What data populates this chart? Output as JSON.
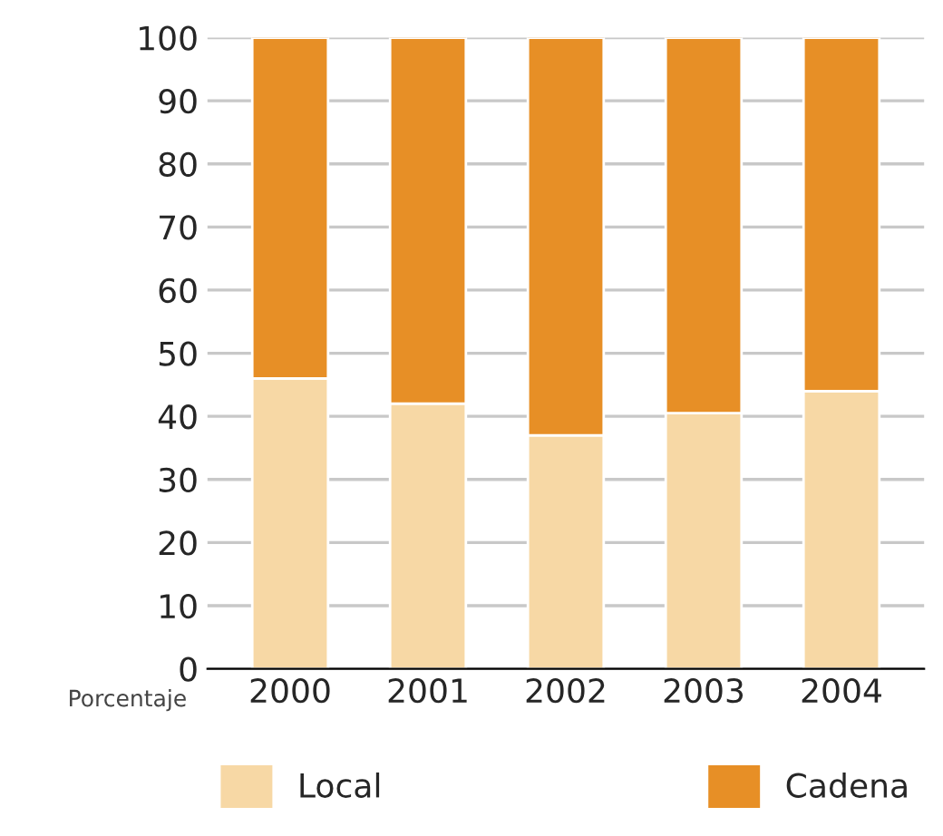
{
  "chart_data": {
    "type": "bar",
    "stacked": true,
    "ylabel": "Porcentaje",
    "categories": [
      "2000",
      "2001",
      "2002",
      "2003",
      "2004"
    ],
    "series": [
      {
        "name": "Local",
        "color": "#f7d8a5",
        "values": [
          46,
          42,
          37,
          40.5,
          44
        ]
      },
      {
        "name": "Cadena",
        "color": "#e78f26",
        "values": [
          54,
          58,
          63,
          59.5,
          56
        ]
      }
    ],
    "ylim": [
      0,
      100
    ],
    "yticks": [
      0,
      10,
      20,
      30,
      40,
      50,
      60,
      70,
      80,
      90,
      100
    ],
    "grid": "y",
    "legend": "bottom"
  }
}
